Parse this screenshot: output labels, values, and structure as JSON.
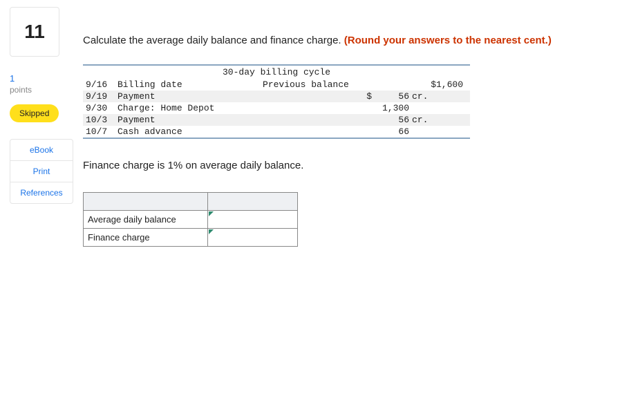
{
  "sidebar": {
    "question_number": "11",
    "points_number": "1",
    "points_label": "points",
    "status_badge": "Skipped",
    "links": [
      "eBook",
      "Print",
      "References"
    ]
  },
  "prompt": {
    "text_plain": "Calculate the average daily balance and finance charge. ",
    "text_red": "(Round your answers to the nearest cent.)"
  },
  "ledger": {
    "title": "30-day billing cycle",
    "rows": [
      {
        "date": "9/16",
        "desc": "Billing date",
        "label": "Previous balance",
        "sym": "",
        "amount": "",
        "cr": "",
        "balance": "$1,600",
        "alt": false
      },
      {
        "date": "9/19",
        "desc": "Payment",
        "label": "",
        "sym": "$",
        "amount": "56",
        "cr": "cr.",
        "balance": "",
        "alt": true
      },
      {
        "date": "9/30",
        "desc": "Charge: Home Depot",
        "label": "",
        "sym": "",
        "amount": "1,300",
        "cr": "",
        "balance": "",
        "alt": false
      },
      {
        "date": "10/3",
        "desc": "Payment",
        "label": "",
        "sym": "",
        "amount": "56",
        "cr": "cr.",
        "balance": "",
        "alt": true
      },
      {
        "date": "10/7",
        "desc": "Cash advance",
        "label": "",
        "sym": "",
        "amount": "66",
        "cr": "",
        "balance": "",
        "alt": false
      }
    ]
  },
  "finance_note": "Finance charge is 1% on average daily balance.",
  "answers": {
    "rows": [
      {
        "label": "Average daily balance",
        "value": ""
      },
      {
        "label": "Finance charge",
        "value": ""
      }
    ]
  }
}
